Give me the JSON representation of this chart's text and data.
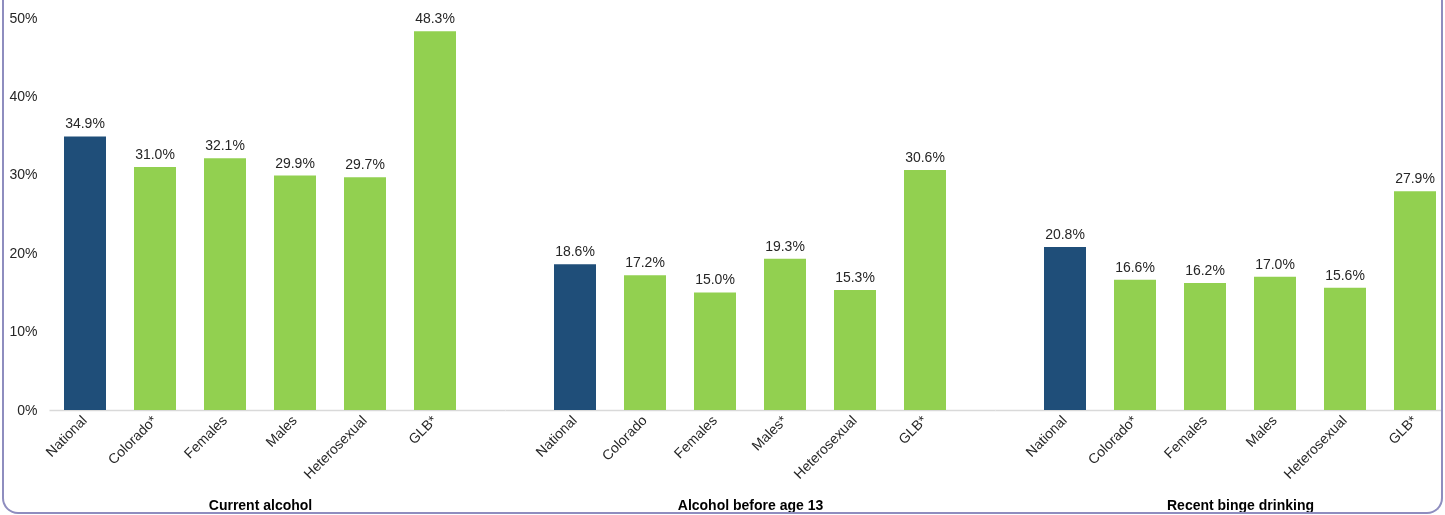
{
  "chart_data": [
    {
      "type": "bar",
      "xlabel": "Current alcohol",
      "categories": [
        "National",
        "Colorado*",
        "Females",
        "Males",
        "Heterosexual",
        "GLB*"
      ],
      "values": [
        34.9,
        31.0,
        32.1,
        29.9,
        29.7,
        48.3
      ],
      "value_labels": [
        "34.9%",
        "31.0%",
        "32.1%",
        "29.9%",
        "29.7%",
        "48.3%"
      ],
      "colors": [
        "#1f4e79",
        "#92d050",
        "#92d050",
        "#92d050",
        "#92d050",
        "#92d050"
      ],
      "ylim": [
        0,
        50
      ],
      "yticks": [
        {
          "value": 0,
          "label": "0%"
        },
        {
          "value": 10,
          "label": "10%"
        },
        {
          "value": 20,
          "label": "20%"
        },
        {
          "value": 30,
          "label": "30%"
        },
        {
          "value": 40,
          "label": "40%"
        },
        {
          "value": 50,
          "label": "50%"
        }
      ]
    },
    {
      "type": "bar",
      "xlabel": "Alcohol before age 13",
      "categories": [
        "National",
        "Colorado",
        "Females",
        "Males*",
        "Heterosexual",
        "GLB*"
      ],
      "values": [
        18.6,
        17.2,
        15.0,
        19.3,
        15.3,
        30.6
      ],
      "value_labels": [
        "18.6%",
        "17.2%",
        "15.0%",
        "19.3%",
        "15.3%",
        "30.6%"
      ],
      "colors": [
        "#1f4e79",
        "#92d050",
        "#92d050",
        "#92d050",
        "#92d050",
        "#92d050"
      ],
      "ylim": [
        0,
        50
      ],
      "tick_labels": "x"
    },
    {
      "type": "bar",
      "xlabel": "Recent binge drinking",
      "categories": [
        "National",
        "Colorado*",
        "Females",
        "Males",
        "Heterosexual",
        "GLB*"
      ],
      "values": [
        20.8,
        16.6,
        16.2,
        17.0,
        15.6,
        27.9
      ],
      "value_labels": [
        "20.8%",
        "16.6%",
        "16.2%",
        "17.0%",
        "15.6%",
        "27.9%"
      ],
      "colors": [
        "#1f4e79",
        "#92d050",
        "#92d050",
        "#92d050",
        "#92d050",
        "#92d050"
      ],
      "ylim": [
        0,
        50
      ],
      "tick_labels": "x"
    }
  ]
}
